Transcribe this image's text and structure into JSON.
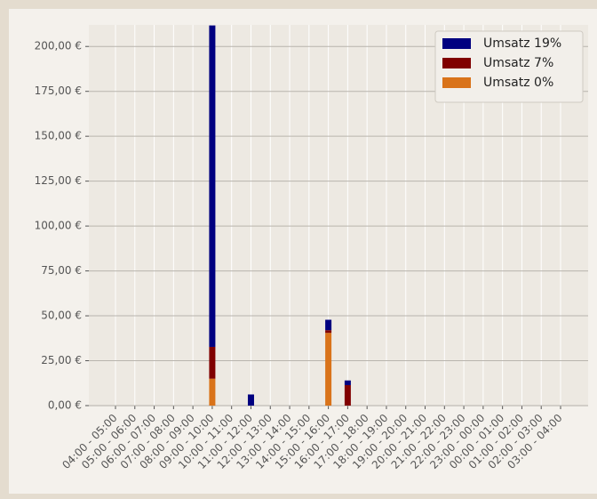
{
  "chart_data": {
    "type": "stacked_bar",
    "categories": [
      "04:00 - 05:00",
      "05:00 - 06:00",
      "06:00 - 07:00",
      "07:00 - 08:00",
      "08:00 - 09:00",
      "09:00 - 10:00",
      "10:00 - 11:00",
      "11:00 - 12:00",
      "12:00 - 13:00",
      "13:00 - 14:00",
      "14:00 - 15:00",
      "15:00 - 16:00",
      "16:00 - 17:00",
      "17:00 - 18:00",
      "18:00 - 19:00",
      "19:00 - 20:00",
      "20:00 - 21:00",
      "21:00 - 22:00",
      "22:00 - 23:00",
      "23:00 - 00:00",
      "00:00 - 01:00",
      "01:00 - 02:00",
      "02:00 - 03:00",
      "03:00 - 04:00"
    ],
    "series": [
      {
        "name": "Umsatz 19%",
        "color": "#000080",
        "values": [
          0,
          0,
          0,
          0,
          0,
          179,
          0,
          6.2,
          0,
          0,
          0,
          5.8,
          2.6,
          0,
          0,
          0,
          0,
          0,
          0,
          0,
          0,
          0,
          0,
          0
        ]
      },
      {
        "name": "Umsatz 7%",
        "color": "#800000",
        "values": [
          0,
          0,
          0,
          0,
          0,
          17.7,
          0,
          0,
          0,
          0,
          0,
          1.5,
          11.4,
          0,
          0,
          0,
          0,
          0,
          0,
          0,
          0,
          0,
          0,
          0
        ]
      },
      {
        "name": "Umsatz 0%",
        "color": "#d9731a",
        "values": [
          0,
          0,
          0,
          0,
          0,
          15,
          0,
          0,
          0,
          0,
          0,
          40.5,
          0,
          0,
          0,
          0,
          0,
          0,
          0,
          0,
          0,
          0,
          0,
          0
        ]
      }
    ],
    "ylim": [
      0,
      212
    ],
    "yticks": [
      {
        "value": 0,
        "label": "0,00 €"
      },
      {
        "value": 25,
        "label": "25,00 €"
      },
      {
        "value": 50,
        "label": "50,00 €"
      },
      {
        "value": 75,
        "label": "75,00 €"
      },
      {
        "value": 100,
        "label": "100,00 €"
      },
      {
        "value": 125,
        "label": "125,00 €"
      },
      {
        "value": 150,
        "label": "150,00 €"
      },
      {
        "value": 175,
        "label": "175,00 €"
      },
      {
        "value": 200,
        "label": "200,00 €"
      }
    ],
    "grid": true,
    "legend": "upper right"
  }
}
